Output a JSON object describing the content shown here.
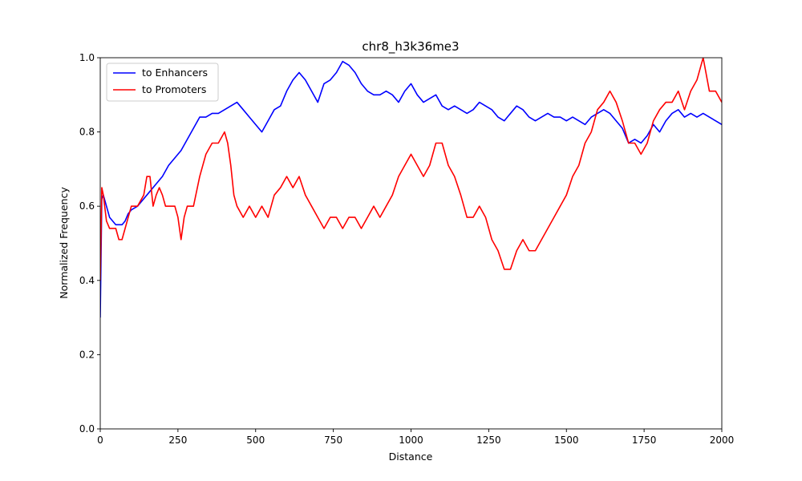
{
  "chart_data": {
    "type": "line",
    "title": "chr8_h3k36me3",
    "xlabel": "Distance",
    "ylabel": "Normalized Frequency",
    "xlim": [
      0,
      2000
    ],
    "ylim": [
      0,
      1.0
    ],
    "xticks": [
      "0",
      "250",
      "500",
      "750",
      "1000",
      "1250",
      "1500",
      "1750",
      "2000"
    ],
    "yticks": [
      "0.0",
      "0.2",
      "0.4",
      "0.6",
      "0.8",
      "1.0"
    ],
    "grid": false,
    "legend_position": "top-left",
    "series": [
      {
        "name": "to Enhancers",
        "color": "#0000ff",
        "x": [
          0,
          5,
          10,
          20,
          30,
          40,
          50,
          60,
          70,
          80,
          90,
          100,
          120,
          140,
          160,
          180,
          200,
          220,
          240,
          260,
          280,
          300,
          320,
          340,
          360,
          380,
          400,
          420,
          440,
          460,
          480,
          500,
          520,
          540,
          560,
          580,
          600,
          620,
          640,
          660,
          680,
          700,
          720,
          740,
          760,
          780,
          800,
          820,
          840,
          860,
          880,
          900,
          920,
          940,
          960,
          980,
          1000,
          1020,
          1040,
          1060,
          1080,
          1100,
          1120,
          1140,
          1160,
          1180,
          1200,
          1220,
          1240,
          1260,
          1280,
          1300,
          1320,
          1340,
          1360,
          1380,
          1400,
          1420,
          1440,
          1460,
          1480,
          1500,
          1520,
          1540,
          1560,
          1580,
          1600,
          1620,
          1640,
          1660,
          1680,
          1700,
          1720,
          1740,
          1760,
          1780,
          1800,
          1820,
          1840,
          1860,
          1880,
          1900,
          1920,
          1940,
          1960,
          1980,
          2000
        ],
        "y": [
          0.3,
          0.62,
          0.63,
          0.6,
          0.57,
          0.56,
          0.55,
          0.55,
          0.55,
          0.56,
          0.58,
          0.59,
          0.6,
          0.62,
          0.64,
          0.66,
          0.68,
          0.71,
          0.73,
          0.75,
          0.78,
          0.81,
          0.84,
          0.84,
          0.85,
          0.85,
          0.86,
          0.87,
          0.88,
          0.86,
          0.84,
          0.82,
          0.8,
          0.83,
          0.86,
          0.87,
          0.91,
          0.94,
          0.96,
          0.94,
          0.91,
          0.88,
          0.93,
          0.94,
          0.96,
          0.99,
          0.98,
          0.96,
          0.93,
          0.91,
          0.9,
          0.9,
          0.91,
          0.9,
          0.88,
          0.91,
          0.93,
          0.9,
          0.88,
          0.89,
          0.9,
          0.87,
          0.86,
          0.87,
          0.86,
          0.85,
          0.86,
          0.88,
          0.87,
          0.86,
          0.84,
          0.83,
          0.85,
          0.87,
          0.86,
          0.84,
          0.83,
          0.84,
          0.85,
          0.84,
          0.84,
          0.83,
          0.84,
          0.83,
          0.82,
          0.84,
          0.85,
          0.86,
          0.85,
          0.83,
          0.81,
          0.77,
          0.78,
          0.77,
          0.79,
          0.82,
          0.8,
          0.83,
          0.85,
          0.86,
          0.84,
          0.85,
          0.84,
          0.85,
          0.84,
          0.83,
          0.82
        ]
      },
      {
        "name": "to Promoters",
        "color": "#ff0000",
        "x": [
          0,
          5,
          10,
          20,
          30,
          40,
          50,
          60,
          70,
          80,
          90,
          100,
          120,
          140,
          150,
          160,
          170,
          180,
          190,
          200,
          210,
          220,
          230,
          240,
          250,
          260,
          270,
          280,
          290,
          300,
          320,
          340,
          360,
          380,
          400,
          410,
          420,
          430,
          440,
          460,
          480,
          500,
          520,
          540,
          560,
          580,
          600,
          620,
          640,
          660,
          680,
          700,
          720,
          740,
          760,
          780,
          800,
          820,
          840,
          860,
          880,
          900,
          920,
          940,
          960,
          980,
          1000,
          1020,
          1040,
          1060,
          1080,
          1100,
          1120,
          1140,
          1160,
          1180,
          1200,
          1220,
          1240,
          1260,
          1280,
          1300,
          1320,
          1340,
          1360,
          1380,
          1400,
          1420,
          1440,
          1460,
          1480,
          1500,
          1520,
          1540,
          1560,
          1580,
          1600,
          1620,
          1640,
          1660,
          1680,
          1700,
          1720,
          1740,
          1760,
          1780,
          1800,
          1820,
          1840,
          1860,
          1880,
          1900,
          1920,
          1940,
          1960,
          1980,
          2000
        ],
        "y": [
          0.4,
          0.65,
          0.63,
          0.56,
          0.54,
          0.54,
          0.54,
          0.51,
          0.51,
          0.54,
          0.57,
          0.6,
          0.6,
          0.63,
          0.68,
          0.68,
          0.6,
          0.63,
          0.65,
          0.63,
          0.6,
          0.6,
          0.6,
          0.6,
          0.57,
          0.51,
          0.57,
          0.6,
          0.6,
          0.6,
          0.68,
          0.74,
          0.77,
          0.77,
          0.8,
          0.77,
          0.71,
          0.63,
          0.6,
          0.57,
          0.6,
          0.57,
          0.6,
          0.57,
          0.63,
          0.65,
          0.68,
          0.65,
          0.68,
          0.63,
          0.6,
          0.57,
          0.54,
          0.57,
          0.57,
          0.54,
          0.57,
          0.57,
          0.54,
          0.57,
          0.6,
          0.57,
          0.6,
          0.63,
          0.68,
          0.71,
          0.74,
          0.71,
          0.68,
          0.71,
          0.77,
          0.77,
          0.71,
          0.68,
          0.63,
          0.57,
          0.57,
          0.6,
          0.57,
          0.51,
          0.48,
          0.43,
          0.43,
          0.48,
          0.51,
          0.48,
          0.48,
          0.51,
          0.54,
          0.57,
          0.6,
          0.63,
          0.68,
          0.71,
          0.77,
          0.8,
          0.86,
          0.88,
          0.91,
          0.88,
          0.83,
          0.77,
          0.77,
          0.74,
          0.77,
          0.83,
          0.86,
          0.88,
          0.88,
          0.91,
          0.86,
          0.91,
          0.94,
          1.0,
          0.91,
          0.91,
          0.88
        ]
      }
    ]
  }
}
